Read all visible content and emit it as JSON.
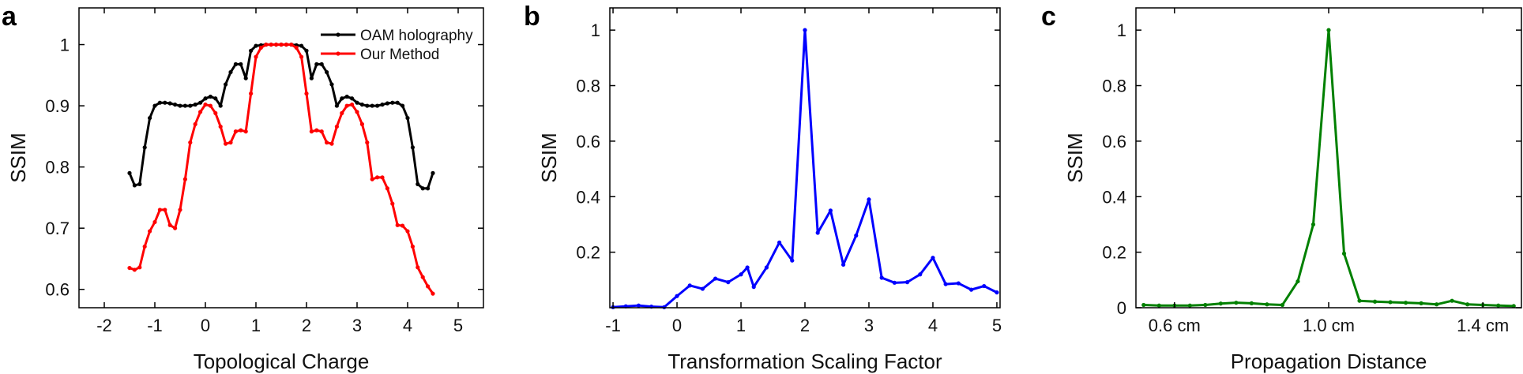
{
  "chart_data": [
    {
      "panel": "a",
      "type": "line",
      "xlabel": "Topological Charge",
      "ylabel": "SSIM",
      "xlim": [
        -2.5,
        5.5
      ],
      "ylim": [
        0.57,
        1.06
      ],
      "xticks": [
        -2,
        -1,
        0,
        1,
        2,
        3,
        4,
        5
      ],
      "xtick_labels": [
        "-2",
        "-1",
        "0",
        "1",
        "2",
        "3",
        "4",
        "5"
      ],
      "yticks": [
        0.6,
        0.7,
        0.8,
        0.9,
        1.0
      ],
      "ytick_labels": [
        "0.6",
        "0.7",
        "0.8",
        "0.9",
        "1"
      ],
      "legend_position": "top-right",
      "series": [
        {
          "name": "OAM holography",
          "color": "#000000",
          "x": [
            -1.5,
            -1.4,
            -1.3,
            -1.2,
            -1.1,
            -1.0,
            -0.9,
            -0.8,
            -0.7,
            -0.6,
            -0.5,
            -0.4,
            -0.3,
            -0.2,
            -0.1,
            0.0,
            0.1,
            0.2,
            0.3,
            0.4,
            0.5,
            0.6,
            0.7,
            0.8,
            0.9,
            1.0,
            1.1,
            1.2,
            1.3,
            1.4,
            1.5,
            1.6,
            1.7,
            1.8,
            1.9,
            2.0,
            2.1,
            2.2,
            2.3,
            2.4,
            2.5,
            2.6,
            2.7,
            2.8,
            2.9,
            3.0,
            3.1,
            3.2,
            3.3,
            3.4,
            3.5,
            3.6,
            3.7,
            3.8,
            3.9,
            4.0,
            4.1,
            4.2,
            4.3,
            4.4,
            4.5
          ],
          "y": [
            0.79,
            0.77,
            0.772,
            0.832,
            0.88,
            0.9,
            0.905,
            0.905,
            0.904,
            0.902,
            0.9,
            0.9,
            0.9,
            0.902,
            0.905,
            0.912,
            0.915,
            0.912,
            0.9,
            0.935,
            0.955,
            0.968,
            0.968,
            0.945,
            0.99,
            0.998,
            0.999,
            1.0,
            1.0,
            1.0,
            1.0,
            1.0,
            1.0,
            0.999,
            0.998,
            0.99,
            0.945,
            0.968,
            0.968,
            0.955,
            0.935,
            0.9,
            0.912,
            0.915,
            0.912,
            0.905,
            0.902,
            0.9,
            0.9,
            0.9,
            0.902,
            0.904,
            0.905,
            0.905,
            0.9,
            0.88,
            0.832,
            0.772,
            0.765,
            0.765,
            0.79
          ]
        },
        {
          "name": "Our Method",
          "color": "#ff0000",
          "x": [
            -1.5,
            -1.4,
            -1.3,
            -1.2,
            -1.1,
            -1.0,
            -0.9,
            -0.8,
            -0.7,
            -0.6,
            -0.5,
            -0.4,
            -0.3,
            -0.2,
            -0.1,
            0.0,
            0.1,
            0.2,
            0.3,
            0.4,
            0.5,
            0.6,
            0.7,
            0.8,
            0.9,
            1.0,
            1.1,
            1.2,
            1.3,
            1.4,
            1.5,
            1.6,
            1.7,
            1.8,
            1.9,
            2.0,
            2.1,
            2.2,
            2.3,
            2.4,
            2.5,
            2.6,
            2.7,
            2.8,
            2.9,
            3.0,
            3.1,
            3.2,
            3.3,
            3.4,
            3.5,
            3.6,
            3.7,
            3.8,
            3.9,
            4.0,
            4.1,
            4.2,
            4.3,
            4.4,
            4.5
          ],
          "y": [
            0.635,
            0.632,
            0.636,
            0.67,
            0.695,
            0.71,
            0.73,
            0.73,
            0.705,
            0.7,
            0.73,
            0.78,
            0.84,
            0.87,
            0.89,
            0.902,
            0.9,
            0.888,
            0.866,
            0.838,
            0.84,
            0.858,
            0.86,
            0.858,
            0.92,
            0.98,
            0.995,
            1.0,
            1.0,
            1.0,
            1.0,
            1.0,
            1.0,
            0.995,
            0.98,
            0.92,
            0.858,
            0.86,
            0.858,
            0.84,
            0.838,
            0.866,
            0.888,
            0.9,
            0.902,
            0.89,
            0.87,
            0.84,
            0.78,
            0.783,
            0.783,
            0.765,
            0.74,
            0.705,
            0.704,
            0.695,
            0.67,
            0.636,
            0.62,
            0.605,
            0.593
          ]
        }
      ]
    },
    {
      "panel": "b",
      "type": "line",
      "xlabel": "Transformation Scaling Factor",
      "ylabel": "SSIM",
      "xlim": [
        -1.05,
        5.05
      ],
      "ylim": [
        0,
        1.08
      ],
      "xticks": [
        -1,
        0,
        1,
        2,
        3,
        4,
        5
      ],
      "xtick_labels": [
        "-1",
        "0",
        "1",
        "2",
        "3",
        "4",
        "5"
      ],
      "yticks": [
        0.2,
        0.4,
        0.6,
        0.8,
        1.0
      ],
      "ytick_labels": [
        "0.2",
        "0.4",
        "0.6",
        "0.8",
        "1"
      ],
      "series": [
        {
          "name": "",
          "color": "#0000ff",
          "x": [
            -1.0,
            -0.8,
            -0.6,
            -0.4,
            -0.2,
            0.0,
            0.2,
            0.4,
            0.6,
            0.8,
            1.0,
            1.1,
            1.2,
            1.4,
            1.6,
            1.8,
            2.0,
            2.2,
            2.4,
            2.6,
            2.8,
            3.0,
            3.2,
            3.4,
            3.6,
            3.8,
            4.0,
            4.2,
            4.4,
            4.6,
            4.8,
            5.0
          ],
          "y": [
            0.002,
            0.005,
            0.008,
            0.004,
            0.002,
            0.042,
            0.08,
            0.068,
            0.105,
            0.092,
            0.12,
            0.145,
            0.075,
            0.145,
            0.235,
            0.17,
            1.0,
            0.27,
            0.35,
            0.155,
            0.26,
            0.39,
            0.108,
            0.09,
            0.092,
            0.12,
            0.18,
            0.085,
            0.088,
            0.065,
            0.078,
            0.055
          ]
        }
      ]
    },
    {
      "panel": "c",
      "type": "line",
      "xlabel": "Propagation Distance",
      "ylabel": "SSIM",
      "xlim": [
        0.5,
        1.5
      ],
      "ylim": [
        0,
        1.08
      ],
      "xticks": [
        0.6,
        1.0,
        1.4
      ],
      "xtick_labels": [
        "0.6 cm",
        "1.0 cm",
        "1.4 cm"
      ],
      "yticks": [
        0,
        0.2,
        0.4,
        0.6,
        0.8,
        1.0
      ],
      "ytick_labels": [
        "0",
        "0.2",
        "0.4",
        "0.6",
        "0.8",
        "1"
      ],
      "series": [
        {
          "name": "",
          "color": "#008000",
          "x": [
            0.52,
            0.56,
            0.6,
            0.64,
            0.68,
            0.72,
            0.76,
            0.8,
            0.84,
            0.88,
            0.92,
            0.96,
            1.0,
            1.04,
            1.08,
            1.12,
            1.16,
            1.2,
            1.24,
            1.28,
            1.32,
            1.36,
            1.4,
            1.44,
            1.48
          ],
          "y": [
            0.01,
            0.008,
            0.008,
            0.008,
            0.01,
            0.015,
            0.018,
            0.016,
            0.012,
            0.01,
            0.095,
            0.3,
            1.0,
            0.195,
            0.025,
            0.022,
            0.02,
            0.018,
            0.016,
            0.012,
            0.025,
            0.012,
            0.01,
            0.008,
            0.006
          ]
        }
      ]
    }
  ]
}
